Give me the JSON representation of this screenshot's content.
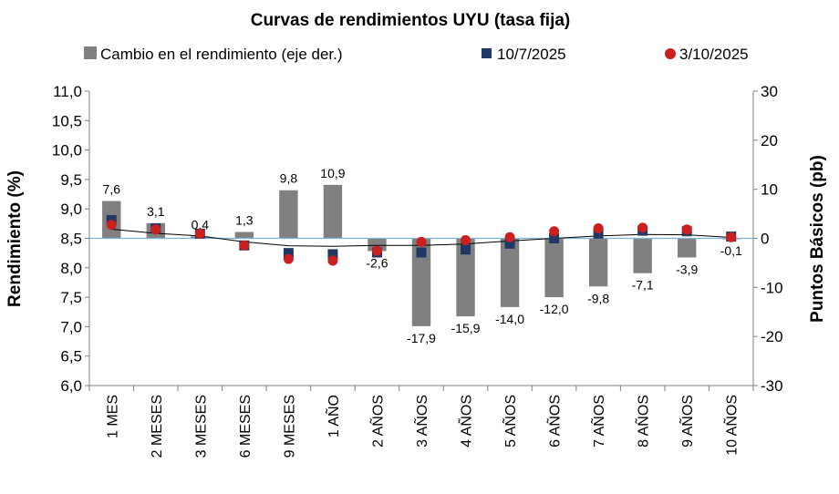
{
  "chart_data": {
    "type": "bar",
    "title": "Curvas de rendimientos UYU (tasa fija)",
    "ylabel": "Rendimiento (%)",
    "y2label": "Puntos Básicos (pb)",
    "ylim": [
      6.0,
      11.0
    ],
    "y2lim": [
      -30,
      30
    ],
    "yticks": [
      "6,0",
      "6,5",
      "7,0",
      "7,5",
      "8,0",
      "8,5",
      "9,0",
      "9,5",
      "10,0",
      "10,5",
      "11,0"
    ],
    "y2ticks": [
      "-30",
      "-20",
      "-10",
      "0",
      "10",
      "20",
      "30"
    ],
    "legend_position": "top",
    "grid": false,
    "categories": [
      "1 MES",
      "2 MESES",
      "3 MESES",
      "6 MESES",
      "9 MESES",
      "1 AÑO",
      "2 AÑOS",
      "3 AÑOS",
      "4 AÑOS",
      "5 AÑOS",
      "6 AÑOS",
      "7 AÑOS",
      "8 AÑOS",
      "9 AÑOS",
      "10 AÑOS"
    ],
    "series": [
      {
        "name": "Cambio en el rendimiento (eje der.)",
        "kind": "bar",
        "axis": "right",
        "color": "#808080",
        "values": [
          7.6,
          3.1,
          0.4,
          1.3,
          9.8,
          10.9,
          -2.6,
          -17.9,
          -15.9,
          -14.0,
          -12.0,
          -9.8,
          -7.1,
          -3.9,
          -0.1
        ],
        "labels": [
          "7,6",
          "3,1",
          "0,4",
          "1,3",
          "9,8",
          "10,9",
          "-2,6",
          "-17,9",
          "-15,9",
          "-14,0",
          "-12,0",
          "-9,8",
          "-7,1",
          "-3,9",
          "-0,1"
        ]
      },
      {
        "name": "10/7/2025",
        "kind": "marker-square",
        "axis": "left",
        "color": "#1f3864",
        "values": [
          8.81,
          8.67,
          8.58,
          8.38,
          8.25,
          8.23,
          8.26,
          8.26,
          8.31,
          8.41,
          8.5,
          8.58,
          8.63,
          8.62,
          8.53
        ]
      },
      {
        "name": "3/10/2025",
        "kind": "marker-circle",
        "axis": "left",
        "color": "#cc1f1f",
        "values": [
          8.73,
          8.65,
          8.58,
          8.38,
          8.15,
          8.12,
          8.29,
          8.44,
          8.47,
          8.52,
          8.62,
          8.67,
          8.68,
          8.65,
          8.52
        ]
      }
    ]
  }
}
